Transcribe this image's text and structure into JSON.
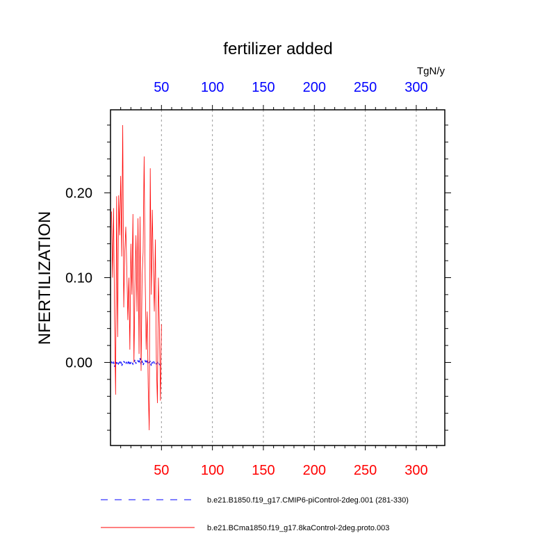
{
  "chart_data": {
    "type": "line",
    "title": "fertilizer added",
    "ylabel": "NFERTILIZATION",
    "units_label": "TgN/y",
    "xlim": [
      0,
      328
    ],
    "ylim": [
      -0.098,
      0.298
    ],
    "x_ticks": [
      50,
      100,
      150,
      200,
      250,
      300
    ],
    "x_tick_labels": [
      "50",
      "100",
      "150",
      "200",
      "250",
      "300"
    ],
    "y_ticks": [
      0.0,
      0.1,
      0.2
    ],
    "y_tick_labels": [
      "0.00",
      "0.10",
      "0.20"
    ],
    "grid": "vertical dashed at x ticks",
    "legend_position": "bottom",
    "colors": {
      "bottom_axis": "#ff0000",
      "top_axis": "#0000ff",
      "series_blue": "#0000ff",
      "series_red": "#ff0000"
    },
    "series": [
      {
        "name": "b.e21.B1850.f19_g17.CMIP6-piControl-2deg.001 (281-330)",
        "color": "#0000ff",
        "style": "dashed",
        "x": [
          1,
          2,
          3,
          4,
          5,
          6,
          7,
          8,
          9,
          10,
          11,
          12,
          13,
          14,
          15,
          16,
          17,
          18,
          19,
          20,
          21,
          22,
          23,
          24,
          25,
          26,
          27,
          28,
          29,
          30,
          31,
          32,
          33,
          34,
          35,
          36,
          37,
          38,
          39,
          40,
          41,
          42,
          43,
          44,
          45,
          46,
          47,
          48,
          49,
          50
        ],
        "values": [
          0.001,
          -0.002,
          0.0,
          -0.005,
          0.002,
          -0.001,
          0.001,
          -0.003,
          0.0,
          0.002,
          -0.004,
          -0.001,
          0.001,
          0.0,
          -0.002,
          0.001,
          -0.001,
          0.002,
          -0.003,
          0.0,
          0.001,
          -0.002,
          0.0,
          0.003,
          -0.001,
          0.0,
          0.002,
          -0.001,
          0.005,
          -0.002,
          0.001,
          -0.003,
          0.0,
          0.002,
          -0.001,
          0.003,
          -0.002,
          0.0,
          0.001,
          -0.004,
          0.0,
          0.002,
          -0.001,
          0.0,
          -0.002,
          0.001,
          -0.003,
          -0.002,
          -0.004,
          -0.005
        ]
      },
      {
        "name": "b.e21.BCma1850.f19_g17.8kaControl-2deg.proto.003",
        "color": "#ff0000",
        "style": "solid",
        "x": [
          1,
          2,
          3,
          4,
          5,
          6,
          7,
          8,
          9,
          10,
          11,
          12,
          13,
          14,
          15,
          16,
          17,
          18,
          19,
          20,
          21,
          22,
          23,
          24,
          25,
          26,
          27,
          28,
          29,
          30,
          31,
          32,
          33,
          34,
          35,
          36,
          37,
          38,
          39,
          40,
          41,
          42,
          43,
          44,
          45,
          46,
          47,
          48,
          49,
          50
        ],
        "values": [
          0.178,
          0.1,
          0.182,
          0.05,
          -0.038,
          0.196,
          0.03,
          0.197,
          0.15,
          0.22,
          0.125,
          0.28,
          0.065,
          0.13,
          0.16,
          0.11,
          0.05,
          0.1,
          0.015,
          0.14,
          0.08,
          0.175,
          0.0,
          0.09,
          0.15,
          0.06,
          0.17,
          0.01,
          0.172,
          -0.01,
          0.1,
          0.13,
          0.243,
          0.1,
          0.015,
          0.06,
          -0.03,
          -0.08,
          0.229,
          0.08,
          0.18,
          0.11,
          0.06,
          0.145,
          0.0,
          -0.048,
          0.1,
          0.04,
          -0.045,
          0.045
        ]
      }
    ]
  }
}
